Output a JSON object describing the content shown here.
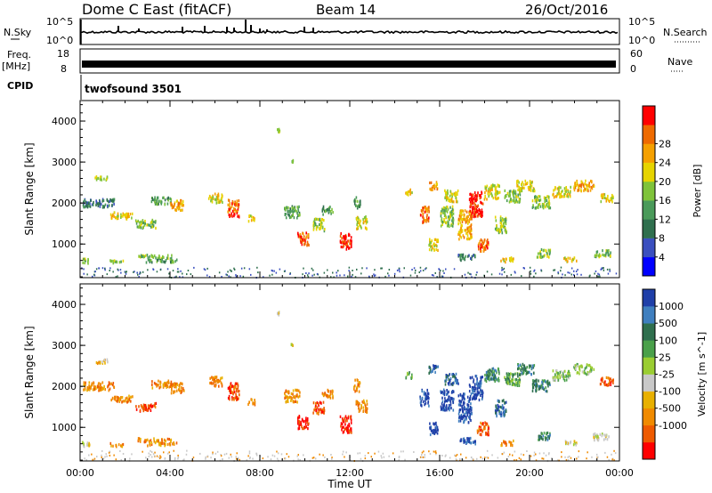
{
  "header": {
    "station": "Dome C East (fitACF)",
    "beam": "Beam 14",
    "date": "26/Oct/2016"
  },
  "labels": {
    "nsky": "N.Sky",
    "nsearch": "N.Search",
    "freq": "Freq.",
    "mhz": "[MHz]",
    "nave": "Nave",
    "cpid": "CPID",
    "cpid_value": "twofsound 3501",
    "nsky_tick_top": "10^5",
    "nsky_tick_bottom": "10^0",
    "nsky_rtick_top": "10^5",
    "nsky_rtick_bottom": "10^0",
    "freq_tick_top": "18",
    "freq_tick_bottom": "8",
    "nave_tick_top": "60",
    "nave_tick_bottom": "0"
  },
  "chart_data": [
    {
      "type": "heatmap",
      "name": "power",
      "ylabel": "Slant Range [km]",
      "xlim": [
        0,
        24
      ],
      "ylim": [
        180,
        4500
      ],
      "yticks": [
        1000,
        2000,
        3000,
        4000
      ],
      "colorbar": {
        "label": "Power [dB]",
        "ticks": [
          4,
          8,
          12,
          16,
          20,
          24,
          28
        ],
        "range": [
          0,
          32
        ],
        "colors": [
          "#0000ff",
          "#3a4fbf",
          "#2f6f4e",
          "#4a9a5a",
          "#7fc33a",
          "#e6d400",
          "#f5a000",
          "#ee6a00",
          "#ff0000"
        ]
      },
      "patches": [
        [
          0.9,
          2640,
          0.6,
          100,
          4
        ],
        [
          0.8,
          2030,
          1.4,
          200,
          2
        ],
        [
          1.8,
          1720,
          1.0,
          160,
          5
        ],
        [
          2.9,
          1520,
          0.9,
          200,
          4
        ],
        [
          3.6,
          2080,
          0.9,
          180,
          3
        ],
        [
          4.3,
          1980,
          0.6,
          260,
          6
        ],
        [
          0.2,
          620,
          0.4,
          120,
          4
        ],
        [
          1.6,
          600,
          0.6,
          80,
          4
        ],
        [
          3.3,
          720,
          1.5,
          90,
          4
        ],
        [
          3.6,
          620,
          1.4,
          80,
          3
        ],
        [
          6.0,
          2150,
          0.6,
          230,
          5
        ],
        [
          6.8,
          1900,
          0.5,
          420,
          7
        ],
        [
          7.6,
          1650,
          0.3,
          150,
          5
        ],
        [
          9.4,
          1800,
          0.7,
          300,
          3
        ],
        [
          9.9,
          1150,
          0.5,
          320,
          7
        ],
        [
          10.6,
          1500,
          0.5,
          300,
          4
        ],
        [
          11.0,
          1850,
          0.5,
          200,
          3
        ],
        [
          11.8,
          1100,
          0.5,
          400,
          8
        ],
        [
          12.5,
          1550,
          0.5,
          300,
          5
        ],
        [
          12.3,
          2050,
          0.3,
          300,
          3
        ],
        [
          14.6,
          2300,
          0.3,
          150,
          5
        ],
        [
          15.7,
          2450,
          0.4,
          200,
          6
        ],
        [
          15.3,
          1750,
          0.4,
          400,
          7
        ],
        [
          15.7,
          1000,
          0.4,
          300,
          5
        ],
        [
          16.3,
          1700,
          0.6,
          500,
          4
        ],
        [
          16.5,
          2200,
          0.6,
          300,
          5
        ],
        [
          17.1,
          1500,
          0.6,
          700,
          6
        ],
        [
          17.6,
          2000,
          0.6,
          600,
          8
        ],
        [
          17.9,
          1000,
          0.5,
          300,
          7
        ],
        [
          18.3,
          2300,
          0.7,
          350,
          5
        ],
        [
          18.7,
          1500,
          0.5,
          400,
          4
        ],
        [
          19.2,
          2200,
          0.7,
          300,
          4
        ],
        [
          19.8,
          2450,
          0.8,
          250,
          5
        ],
        [
          20.5,
          2050,
          0.8,
          300,
          4
        ],
        [
          21.4,
          2300,
          0.8,
          250,
          5
        ],
        [
          22.4,
          2450,
          0.9,
          250,
          6
        ],
        [
          23.4,
          2150,
          0.6,
          200,
          5
        ],
        [
          19.0,
          650,
          0.6,
          120,
          5
        ],
        [
          20.6,
          800,
          0.6,
          200,
          4
        ],
        [
          21.8,
          650,
          0.6,
          100,
          5
        ],
        [
          23.2,
          800,
          0.8,
          160,
          4
        ],
        [
          17.2,
          700,
          0.8,
          150,
          2
        ],
        [
          8.8,
          3800,
          0.1,
          80,
          4
        ],
        [
          9.4,
          3050,
          0.1,
          60,
          4
        ]
      ],
      "background_noise": true
    },
    {
      "type": "heatmap",
      "name": "velocity",
      "ylabel": "Slant Range [km]",
      "xlabel": "Time UT",
      "xlim": [
        0,
        24
      ],
      "ylim": [
        180,
        4500
      ],
      "yticks": [
        1000,
        2000,
        3000,
        4000
      ],
      "xticks": [
        "00:00",
        "04:00",
        "08:00",
        "12:00",
        "16:00",
        "20:00",
        "00:00"
      ],
      "colorbar": {
        "label": "Velocity [m s^-1]",
        "ticks": [
          "1000",
          "500",
          "100",
          "25",
          "-25",
          "-100",
          "-500",
          "-1000"
        ],
        "colors": [
          "#1f3fa8",
          "#3f7fbf",
          "#2f6f4e",
          "#4aa04a",
          "#9acd32",
          "#c8c8c8",
          "#e8b000",
          "#f08a00",
          "#ee5a00",
          "#ff0000"
        ]
      },
      "patches": [
        [
          0.9,
          2640,
          0.6,
          100,
          6
        ],
        [
          0.8,
          2030,
          1.4,
          200,
          7
        ],
        [
          1.8,
          1720,
          1.0,
          160,
          7
        ],
        [
          2.9,
          1520,
          0.9,
          200,
          8
        ],
        [
          3.6,
          2080,
          0.9,
          180,
          7
        ],
        [
          4.3,
          1980,
          0.6,
          260,
          7
        ],
        [
          0.2,
          620,
          0.4,
          120,
          5
        ],
        [
          1.6,
          600,
          0.6,
          80,
          7
        ],
        [
          3.3,
          720,
          1.5,
          90,
          7
        ],
        [
          3.6,
          620,
          1.4,
          80,
          7
        ],
        [
          6.0,
          2150,
          0.6,
          230,
          7
        ],
        [
          6.8,
          1900,
          0.5,
          420,
          8
        ],
        [
          7.6,
          1650,
          0.3,
          150,
          7
        ],
        [
          9.4,
          1800,
          0.7,
          300,
          7
        ],
        [
          9.9,
          1150,
          0.5,
          320,
          9
        ],
        [
          10.6,
          1500,
          0.5,
          300,
          8
        ],
        [
          11.0,
          1850,
          0.5,
          200,
          7
        ],
        [
          11.8,
          1100,
          0.5,
          400,
          9
        ],
        [
          12.5,
          1550,
          0.5,
          300,
          7
        ],
        [
          12.3,
          2050,
          0.3,
          300,
          7
        ],
        [
          14.6,
          2300,
          0.3,
          150,
          3
        ],
        [
          15.7,
          2450,
          0.4,
          200,
          1
        ],
        [
          15.3,
          1750,
          0.4,
          400,
          0
        ],
        [
          15.7,
          1000,
          0.4,
          300,
          0
        ],
        [
          16.3,
          1700,
          0.6,
          500,
          0
        ],
        [
          16.5,
          2200,
          0.6,
          300,
          1
        ],
        [
          17.1,
          1500,
          0.6,
          700,
          0
        ],
        [
          17.6,
          2000,
          0.6,
          600,
          0
        ],
        [
          17.9,
          1000,
          0.5,
          300,
          8
        ],
        [
          18.3,
          2300,
          0.7,
          350,
          2
        ],
        [
          18.7,
          1500,
          0.5,
          400,
          1
        ],
        [
          19.2,
          2200,
          0.7,
          300,
          3
        ],
        [
          19.8,
          2450,
          0.8,
          250,
          2
        ],
        [
          20.5,
          2050,
          0.8,
          300,
          2
        ],
        [
          21.4,
          2300,
          0.8,
          250,
          4
        ],
        [
          22.4,
          2450,
          0.9,
          250,
          4
        ],
        [
          23.4,
          2150,
          0.6,
          200,
          8
        ],
        [
          19.0,
          650,
          0.6,
          120,
          7
        ],
        [
          20.6,
          800,
          0.6,
          200,
          2
        ],
        [
          21.8,
          650,
          0.6,
          100,
          5
        ],
        [
          23.2,
          800,
          0.8,
          160,
          5
        ],
        [
          17.2,
          700,
          0.8,
          150,
          0
        ],
        [
          8.8,
          3800,
          0.1,
          80,
          5
        ],
        [
          9.4,
          3050,
          0.1,
          60,
          5
        ]
      ],
      "background_noise": true
    }
  ]
}
